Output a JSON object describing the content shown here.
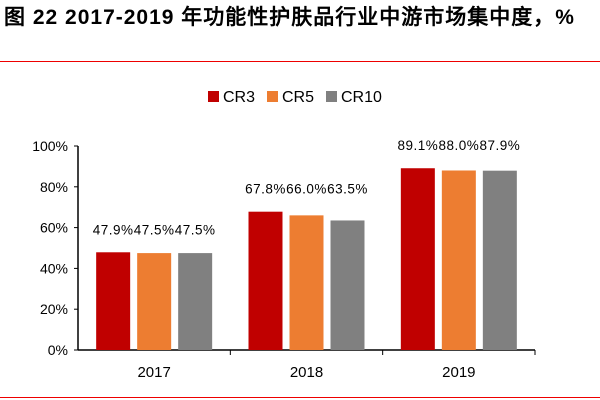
{
  "title": "图 22 2017-2019 年功能性护肤品行业中游市场集中度，%",
  "chart_data": {
    "type": "bar",
    "title": "",
    "xlabel": "",
    "ylabel": "",
    "categories": [
      "2017",
      "2018",
      "2019"
    ],
    "series": [
      {
        "name": "CR3",
        "color": "#C00000",
        "values": [
          47.9,
          67.8,
          89.1
        ],
        "labels": [
          "47.9%",
          "67.8%",
          "89.1%"
        ]
      },
      {
        "name": "CR5",
        "color": "#ED7D31",
        "values": [
          47.5,
          66.0,
          88.0
        ],
        "labels": [
          "47.5%",
          "66.0%",
          "88.0%"
        ]
      },
      {
        "name": "CR10",
        "color": "#808080",
        "values": [
          47.5,
          63.5,
          87.9
        ],
        "labels": [
          "47.5%",
          "63.5%",
          "87.9%"
        ]
      }
    ],
    "ylim": [
      0,
      100
    ],
    "yticks": [
      "0%",
      "20%",
      "40%",
      "60%",
      "80%",
      "100%"
    ],
    "grid": false,
    "legend": "top-center"
  }
}
